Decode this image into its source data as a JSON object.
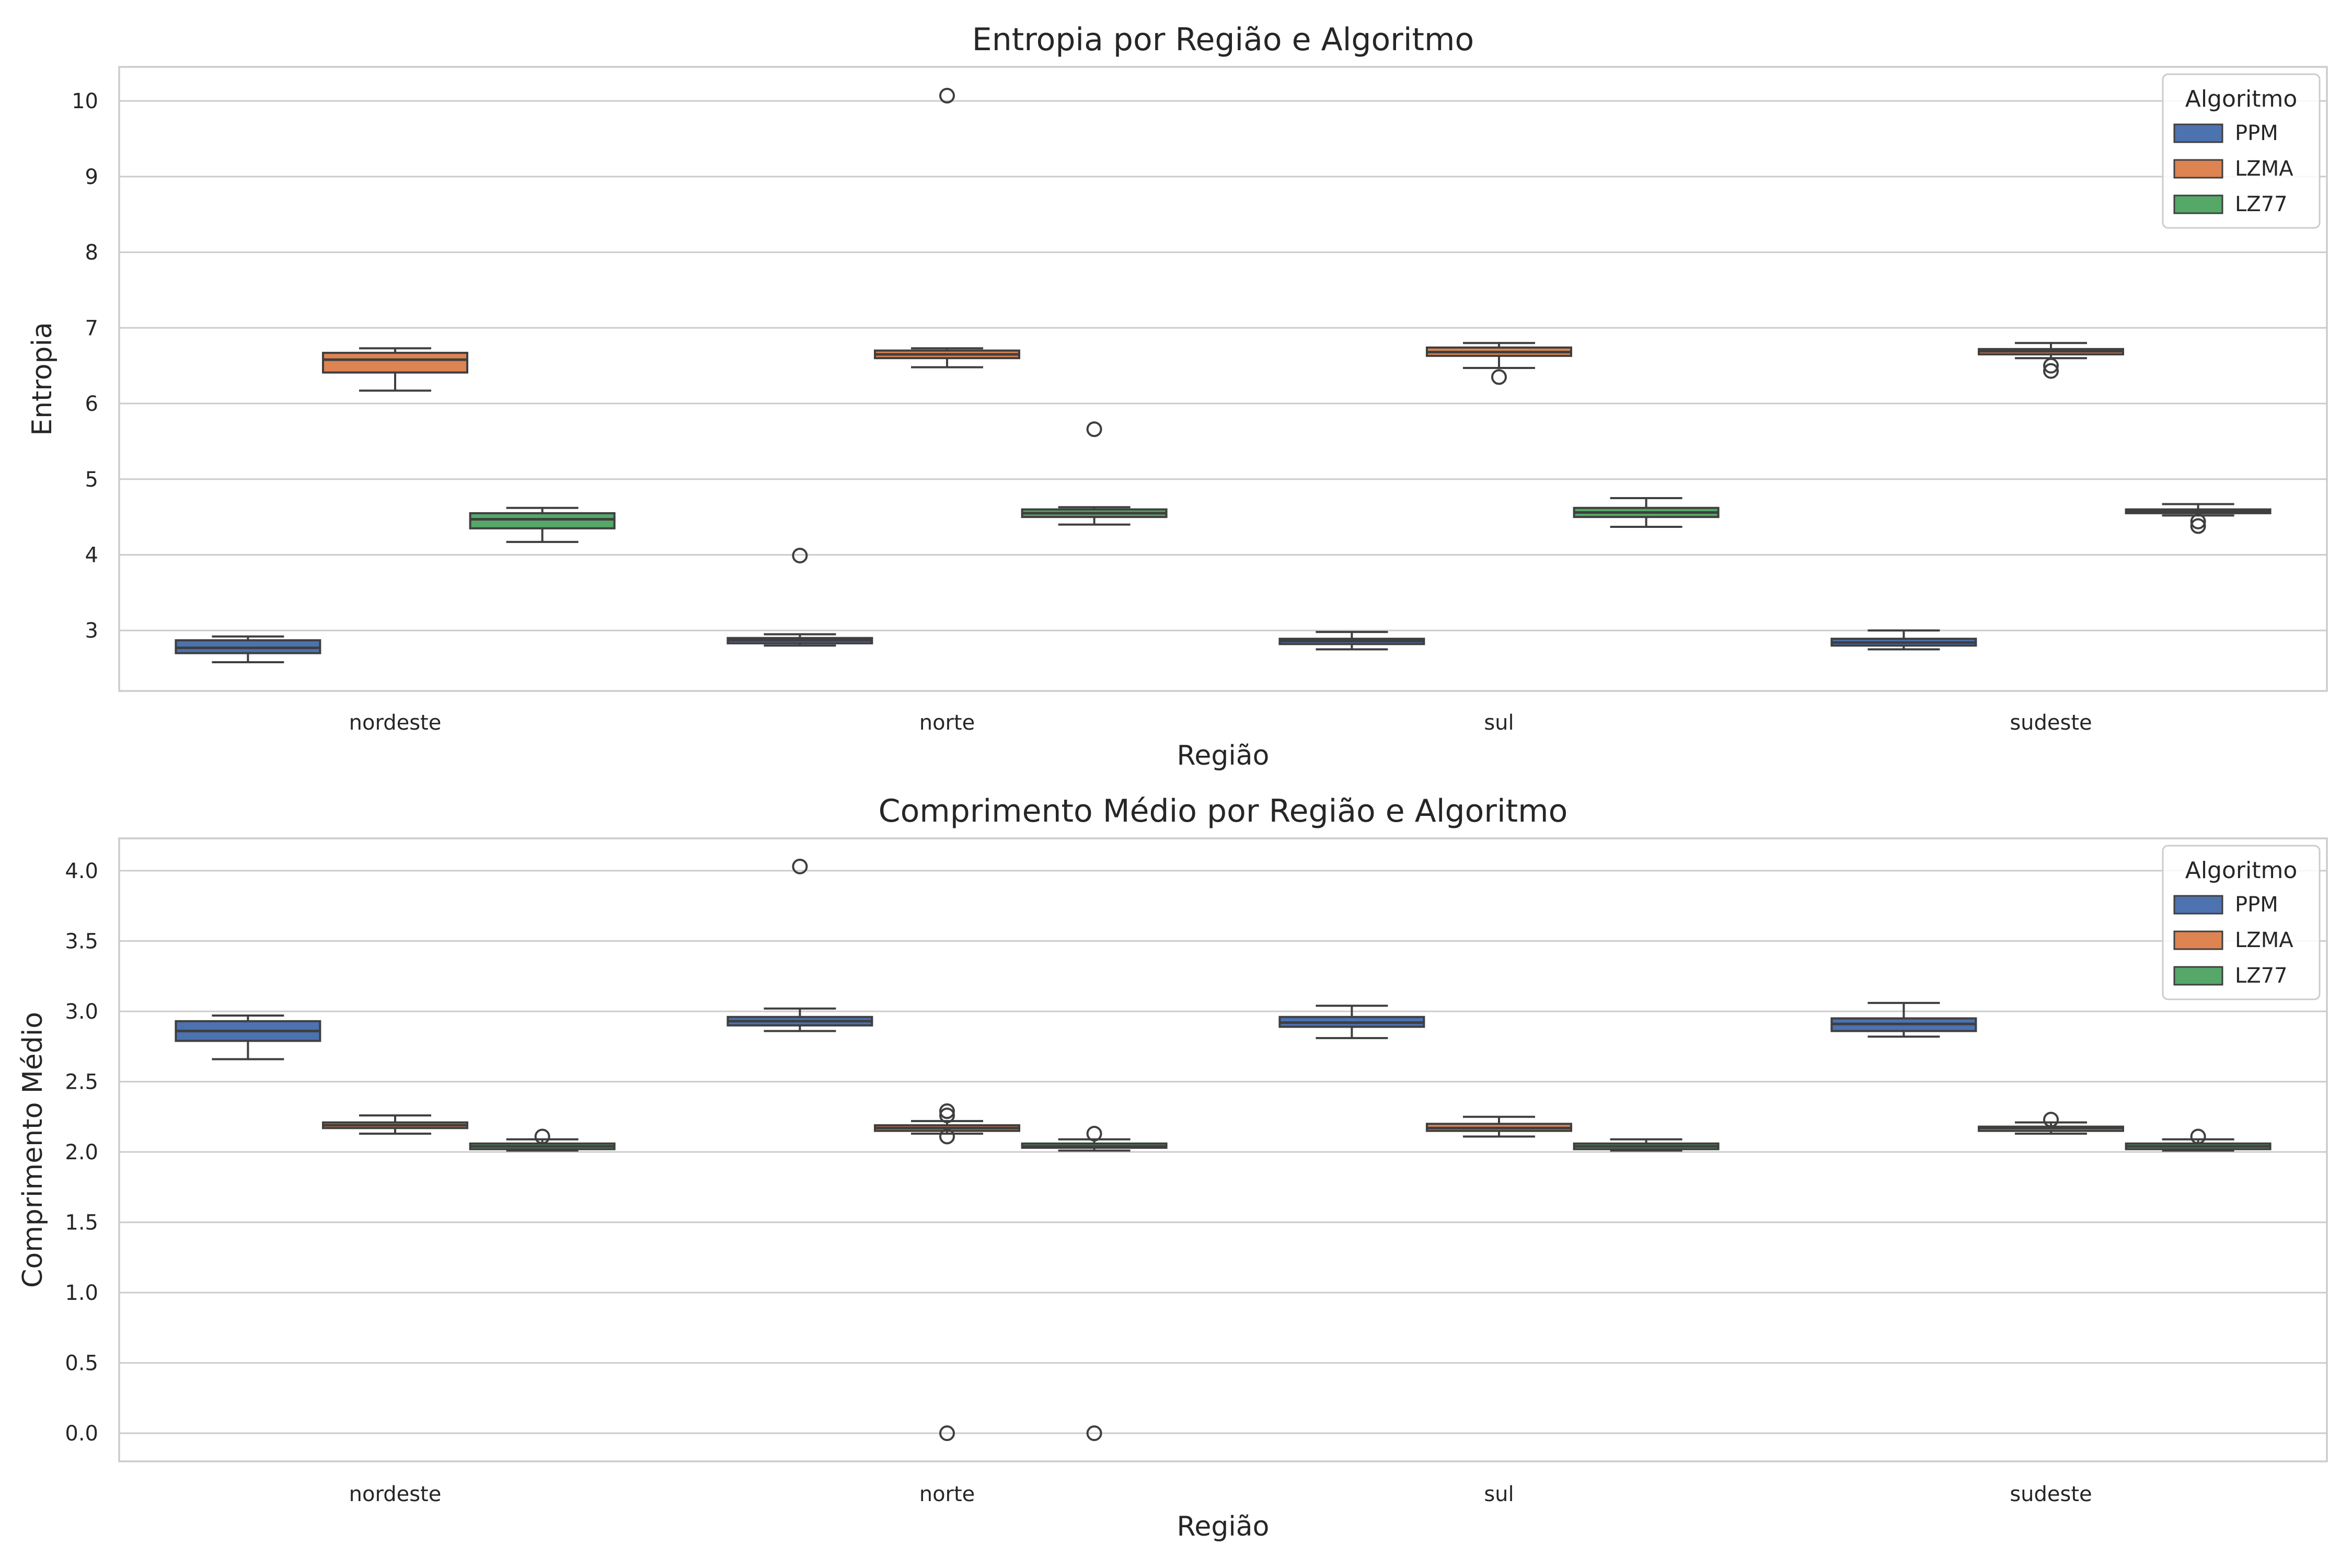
{
  "chart_data": [
    {
      "type": "box",
      "title": "Entropia por Região e Algoritmo",
      "xlabel": "Região",
      "ylabel": "Entropia",
      "ylim": [
        2.2,
        10.45
      ],
      "yticks": [
        "3",
        "4",
        "5",
        "6",
        "7",
        "8",
        "9",
        "10"
      ],
      "ytick_values": [
        3,
        4,
        5,
        6,
        7,
        8,
        9,
        10
      ],
      "categories": [
        "nordeste",
        "norte",
        "sul",
        "sudeste"
      ],
      "legend": {
        "title": "Algoritmo",
        "position": "top-right"
      },
      "series": [
        {
          "name": "PPM",
          "color": "#4c72b0",
          "boxes": [
            {
              "whislo": 2.58,
              "q1": 2.7,
              "med": 2.77,
              "q3": 2.87,
              "whishi": 2.92,
              "fliers": []
            },
            {
              "whislo": 2.8,
              "q1": 2.83,
              "med": 2.87,
              "q3": 2.9,
              "whishi": 2.95,
              "fliers": [
                3.99
              ]
            },
            {
              "whislo": 2.75,
              "q1": 2.82,
              "med": 2.86,
              "q3": 2.89,
              "whishi": 2.98,
              "fliers": []
            },
            {
              "whislo": 2.75,
              "q1": 2.8,
              "med": 2.84,
              "q3": 2.89,
              "whishi": 3.0,
              "fliers": []
            }
          ]
        },
        {
          "name": "LZMA",
          "color": "#dd8452",
          "boxes": [
            {
              "whislo": 6.17,
              "q1": 6.41,
              "med": 6.58,
              "q3": 6.67,
              "whishi": 6.73,
              "fliers": []
            },
            {
              "whislo": 6.48,
              "q1": 6.6,
              "med": 6.65,
              "q3": 6.7,
              "whishi": 6.73,
              "fliers": [
                10.07
              ]
            },
            {
              "whislo": 6.47,
              "q1": 6.63,
              "med": 6.68,
              "q3": 6.74,
              "whishi": 6.8,
              "fliers": [
                6.35
              ]
            },
            {
              "whislo": 6.6,
              "q1": 6.65,
              "med": 6.69,
              "q3": 6.72,
              "whishi": 6.8,
              "fliers": [
                6.43,
                6.5
              ]
            }
          ]
        },
        {
          "name": "LZ77",
          "color": "#55a868",
          "boxes": [
            {
              "whislo": 4.17,
              "q1": 4.35,
              "med": 4.47,
              "q3": 4.55,
              "whishi": 4.62,
              "fliers": []
            },
            {
              "whislo": 4.4,
              "q1": 4.5,
              "med": 4.55,
              "q3": 4.6,
              "whishi": 4.63,
              "fliers": [
                5.66
              ]
            },
            {
              "whislo": 4.37,
              "q1": 4.5,
              "med": 4.56,
              "q3": 4.62,
              "whishi": 4.75,
              "fliers": []
            },
            {
              "whislo": 4.52,
              "q1": 4.55,
              "med": 4.57,
              "q3": 4.6,
              "whishi": 4.67,
              "fliers": [
                4.38,
                4.44
              ]
            }
          ]
        }
      ]
    },
    {
      "type": "box",
      "title": "Comprimento Médio por Região e Algoritmo",
      "xlabel": "Região",
      "ylabel": "Comprimento Médio",
      "ylim": [
        -0.2,
        4.23
      ],
      "yticks": [
        "0.0",
        "0.5",
        "1.0",
        "1.5",
        "2.0",
        "2.5",
        "3.0",
        "3.5",
        "4.0"
      ],
      "ytick_values": [
        0,
        0.5,
        1,
        1.5,
        2,
        2.5,
        3,
        3.5,
        4
      ],
      "categories": [
        "nordeste",
        "norte",
        "sul",
        "sudeste"
      ],
      "legend": {
        "title": "Algoritmo",
        "position": "top-right"
      },
      "series": [
        {
          "name": "PPM",
          "color": "#4c72b0",
          "boxes": [
            {
              "whislo": 2.66,
              "q1": 2.79,
              "med": 2.86,
              "q3": 2.93,
              "whishi": 2.97,
              "fliers": []
            },
            {
              "whislo": 2.86,
              "q1": 2.9,
              "med": 2.93,
              "q3": 2.96,
              "whishi": 3.02,
              "fliers": [
                4.03
              ]
            },
            {
              "whislo": 2.81,
              "q1": 2.89,
              "med": 2.92,
              "q3": 2.96,
              "whishi": 3.04,
              "fliers": []
            },
            {
              "whislo": 2.82,
              "q1": 2.86,
              "med": 2.91,
              "q3": 2.95,
              "whishi": 3.06,
              "fliers": []
            }
          ]
        },
        {
          "name": "LZMA",
          "color": "#dd8452",
          "boxes": [
            {
              "whislo": 2.13,
              "q1": 2.17,
              "med": 2.19,
              "q3": 2.21,
              "whishi": 2.26,
              "fliers": []
            },
            {
              "whislo": 2.13,
              "q1": 2.15,
              "med": 2.17,
              "q3": 2.19,
              "whishi": 2.22,
              "fliers": [
                0.0,
                2.11,
                2.26,
                2.29
              ]
            },
            {
              "whislo": 2.11,
              "q1": 2.15,
              "med": 2.17,
              "q3": 2.2,
              "whishi": 2.25,
              "fliers": []
            },
            {
              "whislo": 2.13,
              "q1": 2.15,
              "med": 2.17,
              "q3": 2.18,
              "whishi": 2.21,
              "fliers": [
                2.23
              ]
            }
          ]
        },
        {
          "name": "LZ77",
          "color": "#55a868",
          "boxes": [
            {
              "whislo": 2.01,
              "q1": 2.02,
              "med": 2.04,
              "q3": 2.06,
              "whishi": 2.09,
              "fliers": [
                2.11
              ]
            },
            {
              "whislo": 2.01,
              "q1": 2.03,
              "med": 2.04,
              "q3": 2.06,
              "whishi": 2.09,
              "fliers": [
                0.0,
                2.13
              ]
            },
            {
              "whislo": 2.01,
              "q1": 2.02,
              "med": 2.04,
              "q3": 2.06,
              "whishi": 2.09,
              "fliers": []
            },
            {
              "whislo": 2.01,
              "q1": 2.02,
              "med": 2.04,
              "q3": 2.06,
              "whishi": 2.09,
              "fliers": [
                2.11
              ]
            }
          ]
        }
      ]
    }
  ]
}
